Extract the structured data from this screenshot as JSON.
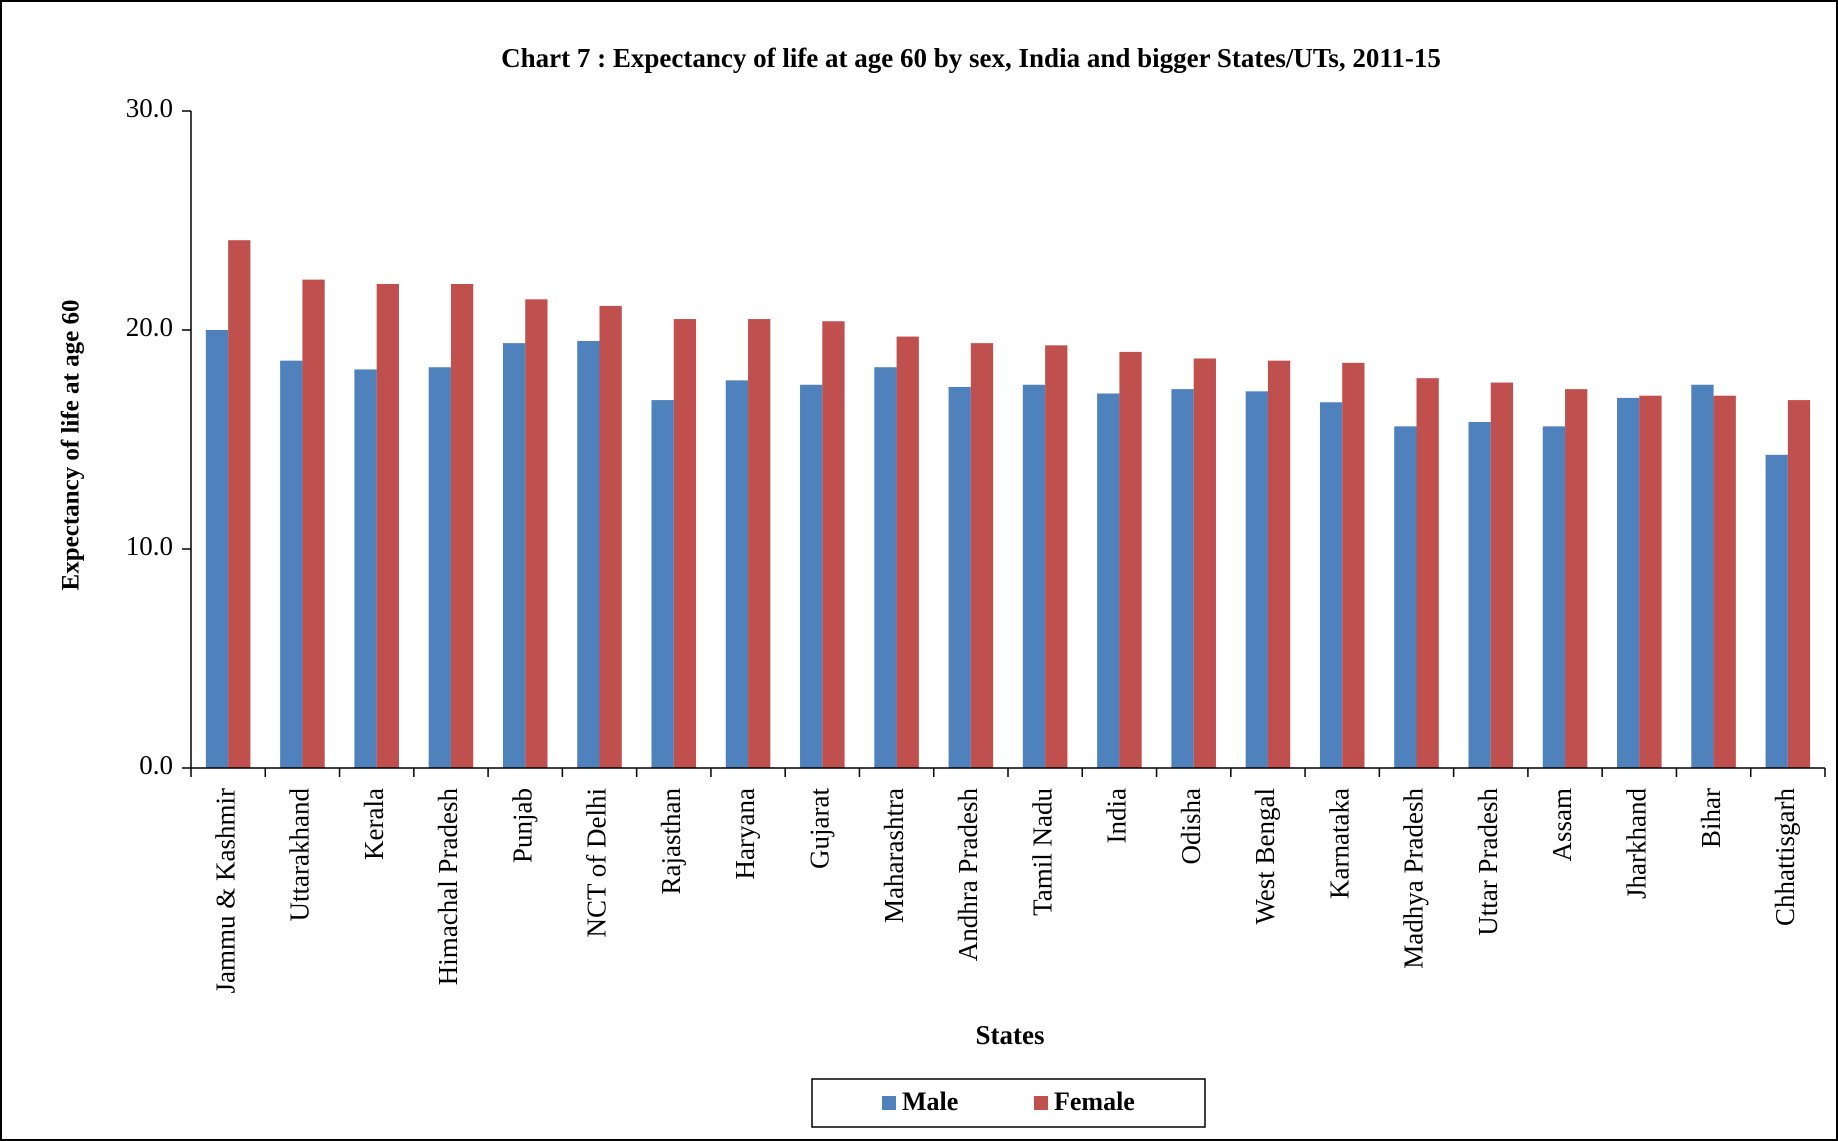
{
  "chart_data": {
    "type": "bar",
    "title": "Chart 7 : Expectancy of life at age 60 by sex, India and bigger States/UTs, 2011-15",
    "x_label": "States",
    "y_label": "Expectancy of life at age 60",
    "categories": [
      "Jammu & Kashmir",
      "Uttarakhand",
      "Kerala",
      "Himachal Pradesh",
      "Punjab",
      "NCT of Delhi",
      "Rajasthan",
      "Haryana",
      "Gujarat",
      "Maharashtra",
      "Andhra Pradesh",
      "Tamil Nadu",
      "India",
      "Odisha",
      "West Bengal",
      "Karnataka",
      "Madhya Pradesh",
      "Uttar Pradesh",
      "Assam",
      "Jharkhand",
      "Bihar",
      "Chhattisgarh"
    ],
    "series": [
      {
        "name": "Male",
        "color": "#4f81bd",
        "values": [
          20.0,
          18.6,
          18.2,
          18.3,
          19.4,
          19.5,
          16.8,
          17.7,
          17.5,
          18.3,
          17.4,
          17.5,
          17.1,
          17.3,
          17.2,
          16.7,
          15.6,
          15.8,
          15.6,
          16.9,
          17.5,
          14.3
        ]
      },
      {
        "name": "Female",
        "color": "#c0504d",
        "values": [
          24.1,
          22.3,
          22.1,
          22.1,
          21.4,
          21.1,
          20.5,
          20.5,
          20.4,
          19.7,
          19.4,
          19.3,
          19.0,
          18.7,
          18.6,
          18.5,
          17.8,
          17.6,
          17.3,
          17.0,
          17.0,
          16.8
        ]
      }
    ],
    "ylim": [
      0,
      30
    ],
    "yticks": [
      {
        "value": 0,
        "label": "0.0"
      },
      {
        "value": 10,
        "label": "10.0"
      },
      {
        "value": 20,
        "label": "20.0"
      },
      {
        "value": 30,
        "label": "30.0"
      }
    ],
    "legend": "bottom"
  }
}
